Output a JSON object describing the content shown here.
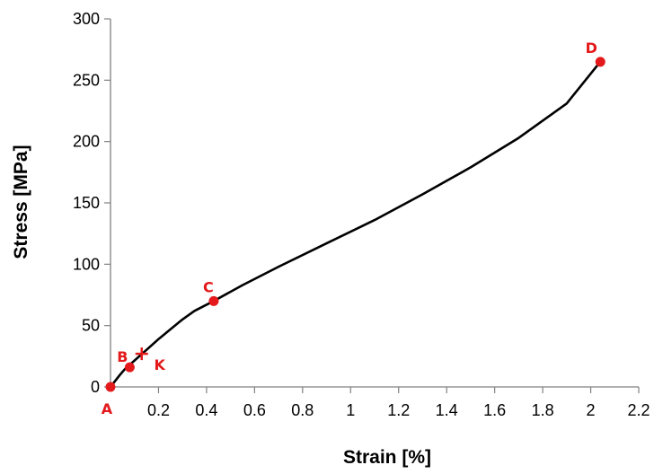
{
  "chart_data": {
    "type": "line",
    "title": "",
    "xlabel": "Strain [%]",
    "ylabel": "Stress [MPa]",
    "xlim": [
      0,
      2.2
    ],
    "ylim": [
      0,
      300
    ],
    "x_ticks": [
      0.2,
      0.4,
      0.6,
      0.8,
      1,
      1.2,
      1.4,
      1.6,
      1.8,
      2,
      2.2
    ],
    "x_tick_labels": [
      "0.2",
      "0.4",
      "0.6",
      "0.8",
      "1",
      "1.2",
      "1.4",
      "1.6",
      "1.8",
      "2",
      "2.2"
    ],
    "y_ticks": [
      0,
      50,
      100,
      150,
      200,
      250,
      300
    ],
    "y_tick_labels": [
      "0",
      "50",
      "100",
      "150",
      "200",
      "250",
      "300"
    ],
    "grid": false,
    "legend": "none",
    "series": [
      {
        "color": "#000000",
        "x": [
          0,
          0.02,
          0.04,
          0.06,
          0.08,
          0.12,
          0.16,
          0.2,
          0.25,
          0.3,
          0.35,
          0.43,
          0.55,
          0.7,
          0.9,
          1.1,
          1.3,
          1.5,
          1.7,
          1.9,
          2.04
        ],
        "y": [
          0,
          5,
          10,
          14.5,
          18,
          25,
          32,
          39,
          47,
          55,
          62,
          70,
          83,
          98,
          117,
          136,
          157,
          179,
          203,
          231,
          265
        ]
      }
    ],
    "points": [
      {
        "label": "A",
        "x": 0,
        "y": 0,
        "marker": "circle",
        "color": "#e3191b"
      },
      {
        "label": "B",
        "x": 0.08,
        "y": 16,
        "marker": "circle",
        "color": "#e3191b"
      },
      {
        "label": "K",
        "x": 0.13,
        "y": 27,
        "marker": "plus",
        "color": "#e3191b"
      },
      {
        "label": "C",
        "x": 0.43,
        "y": 70,
        "marker": "circle",
        "color": "#e3191b"
      },
      {
        "label": "D",
        "x": 2.04,
        "y": 265,
        "marker": "circle",
        "color": "#e3191b"
      }
    ]
  }
}
